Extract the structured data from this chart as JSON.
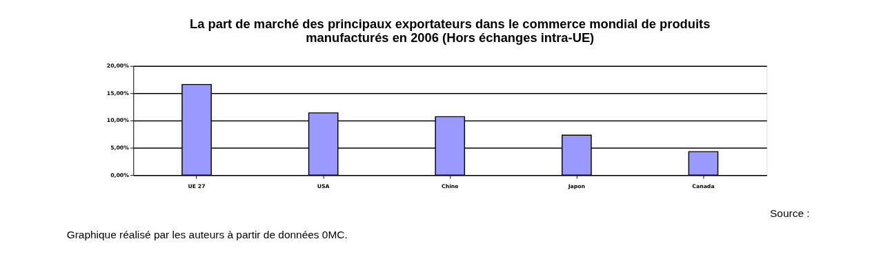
{
  "chart_data": {
    "type": "bar",
    "title": "La part de marché des principaux exportateurs  dans le commerce mondial de produits manufacturés en 2006 (Hors échanges intra-UE)",
    "categories": [
      "UE 27",
      "USA",
      "Chine",
      "Japon",
      "Canada"
    ],
    "values": [
      16.6,
      11.4,
      10.7,
      7.3,
      4.3
    ],
    "color": "#9999ff",
    "ylim": [
      0,
      20
    ],
    "yticks": [
      {
        "value": 0,
        "label": "0,00%"
      },
      {
        "value": 5,
        "label": "5,00%"
      },
      {
        "value": 10,
        "label": "10,00%"
      },
      {
        "value": 15,
        "label": "15,00%"
      },
      {
        "value": 20,
        "label": "20,00%"
      }
    ],
    "grid": "y",
    "annotations": [
      "Source :",
      "Graphique réalisé par les auteurs à partir de données 0MC."
    ]
  }
}
